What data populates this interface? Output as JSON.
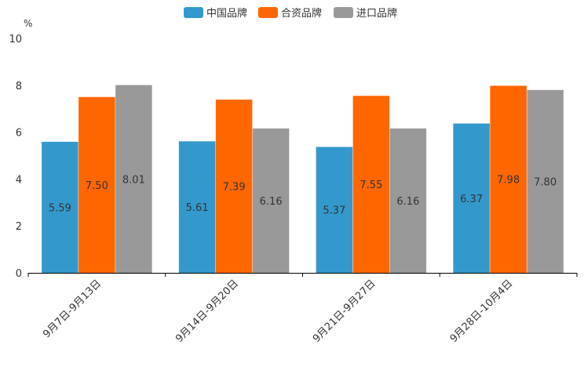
{
  "chart_data": {
    "type": "bar",
    "unit_label": "%",
    "categories": [
      "9月7日-9月13日",
      "9月14日-9月20日",
      "9月21日-9月27日",
      "9月28日-10月4日"
    ],
    "series": [
      {
        "name": "中国品牌",
        "values": [
          5.59,
          5.61,
          5.37,
          6.37
        ],
        "labels": [
          "5.59",
          "5.61",
          "5.37",
          "6.37"
        ],
        "color": "#3399cc"
      },
      {
        "name": "合资品牌",
        "values": [
          7.5,
          7.39,
          7.55,
          7.98
        ],
        "labels": [
          "7.50",
          "7.39",
          "7.55",
          "7.98"
        ],
        "color": "#ff6600"
      },
      {
        "name": "进口品牌",
        "values": [
          8.01,
          6.16,
          6.16,
          7.8
        ],
        "labels": [
          "8.01",
          "6.16",
          "6.16",
          "7.80"
        ],
        "color": "#999999"
      }
    ],
    "ylim": [
      0,
      10
    ],
    "yticks": [
      0,
      2,
      4,
      6,
      8,
      10
    ],
    "ytick_labels": [
      "0",
      "2",
      "4",
      "6",
      "8",
      "10"
    ],
    "legend_position": "top-center",
    "grid": false,
    "title": "",
    "xlabel": "",
    "ylabel": ""
  }
}
